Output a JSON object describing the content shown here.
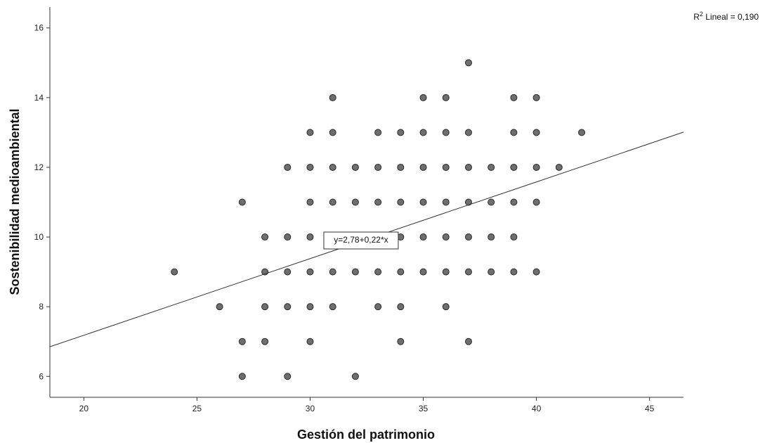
{
  "chart_data": {
    "type": "scatter",
    "xlabel": "Gestión del patrimonio",
    "ylabel": "Sostenibilidad medioambiental",
    "xlim": [
      18.5,
      46.5
    ],
    "ylim": [
      5.4,
      16.6
    ],
    "x_ticks": [
      20,
      25,
      30,
      35,
      40,
      45
    ],
    "y_ticks": [
      6,
      8,
      10,
      12,
      14,
      16
    ],
    "x_tick_labels": [
      "20",
      "25",
      "30",
      "35",
      "40",
      "45"
    ],
    "y_tick_labels": [
      "6",
      "8",
      "10",
      "12",
      "14",
      "16"
    ],
    "grid": false,
    "point_color": "#6e6e6e",
    "point_stroke": "#2b2b2b",
    "line_color": "#333333",
    "r2_label": {
      "prefix": "R",
      "sup": "2",
      "suffix": " Lineal = 0,190"
    },
    "fit_line": {
      "intercept": 2.78,
      "slope": 0.22,
      "label": "y=2,78+0,22*x"
    },
    "points": [
      [
        24,
        9
      ],
      [
        26,
        8
      ],
      [
        27,
        11
      ],
      [
        27,
        7
      ],
      [
        27,
        6
      ],
      [
        28,
        10
      ],
      [
        28,
        9
      ],
      [
        28,
        8
      ],
      [
        28,
        7
      ],
      [
        29,
        12
      ],
      [
        29,
        10
      ],
      [
        29,
        9
      ],
      [
        29,
        8
      ],
      [
        29,
        6
      ],
      [
        30,
        13
      ],
      [
        30,
        12
      ],
      [
        30,
        11
      ],
      [
        30,
        10
      ],
      [
        30,
        9
      ],
      [
        30,
        8
      ],
      [
        30,
        7
      ],
      [
        31,
        14
      ],
      [
        31,
        13
      ],
      [
        31,
        12
      ],
      [
        31,
        11
      ],
      [
        31,
        9
      ],
      [
        31,
        8
      ],
      [
        32,
        12
      ],
      [
        32,
        11
      ],
      [
        32,
        9
      ],
      [
        32,
        6
      ],
      [
        33,
        13
      ],
      [
        33,
        12
      ],
      [
        33,
        11
      ],
      [
        33,
        10
      ],
      [
        33,
        9
      ],
      [
        33,
        8
      ],
      [
        34,
        13
      ],
      [
        34,
        12
      ],
      [
        34,
        11
      ],
      [
        34,
        10
      ],
      [
        34,
        9
      ],
      [
        34,
        8
      ],
      [
        34,
        7
      ],
      [
        35,
        14
      ],
      [
        35,
        13
      ],
      [
        35,
        12
      ],
      [
        35,
        11
      ],
      [
        35,
        10
      ],
      [
        35,
        9
      ],
      [
        36,
        14
      ],
      [
        36,
        13
      ],
      [
        36,
        12
      ],
      [
        36,
        11
      ],
      [
        36,
        10
      ],
      [
        36,
        9
      ],
      [
        36,
        8
      ],
      [
        37,
        15
      ],
      [
        37,
        13
      ],
      [
        37,
        12
      ],
      [
        37,
        11
      ],
      [
        37,
        10
      ],
      [
        37,
        9
      ],
      [
        37,
        7
      ],
      [
        38,
        12
      ],
      [
        38,
        11
      ],
      [
        38,
        10
      ],
      [
        38,
        9
      ],
      [
        39,
        14
      ],
      [
        39,
        13
      ],
      [
        39,
        12
      ],
      [
        39,
        11
      ],
      [
        39,
        10
      ],
      [
        39,
        9
      ],
      [
        40,
        14
      ],
      [
        40,
        13
      ],
      [
        40,
        12
      ],
      [
        40,
        11
      ],
      [
        40,
        9
      ],
      [
        41,
        12
      ],
      [
        42,
        13
      ]
    ]
  }
}
